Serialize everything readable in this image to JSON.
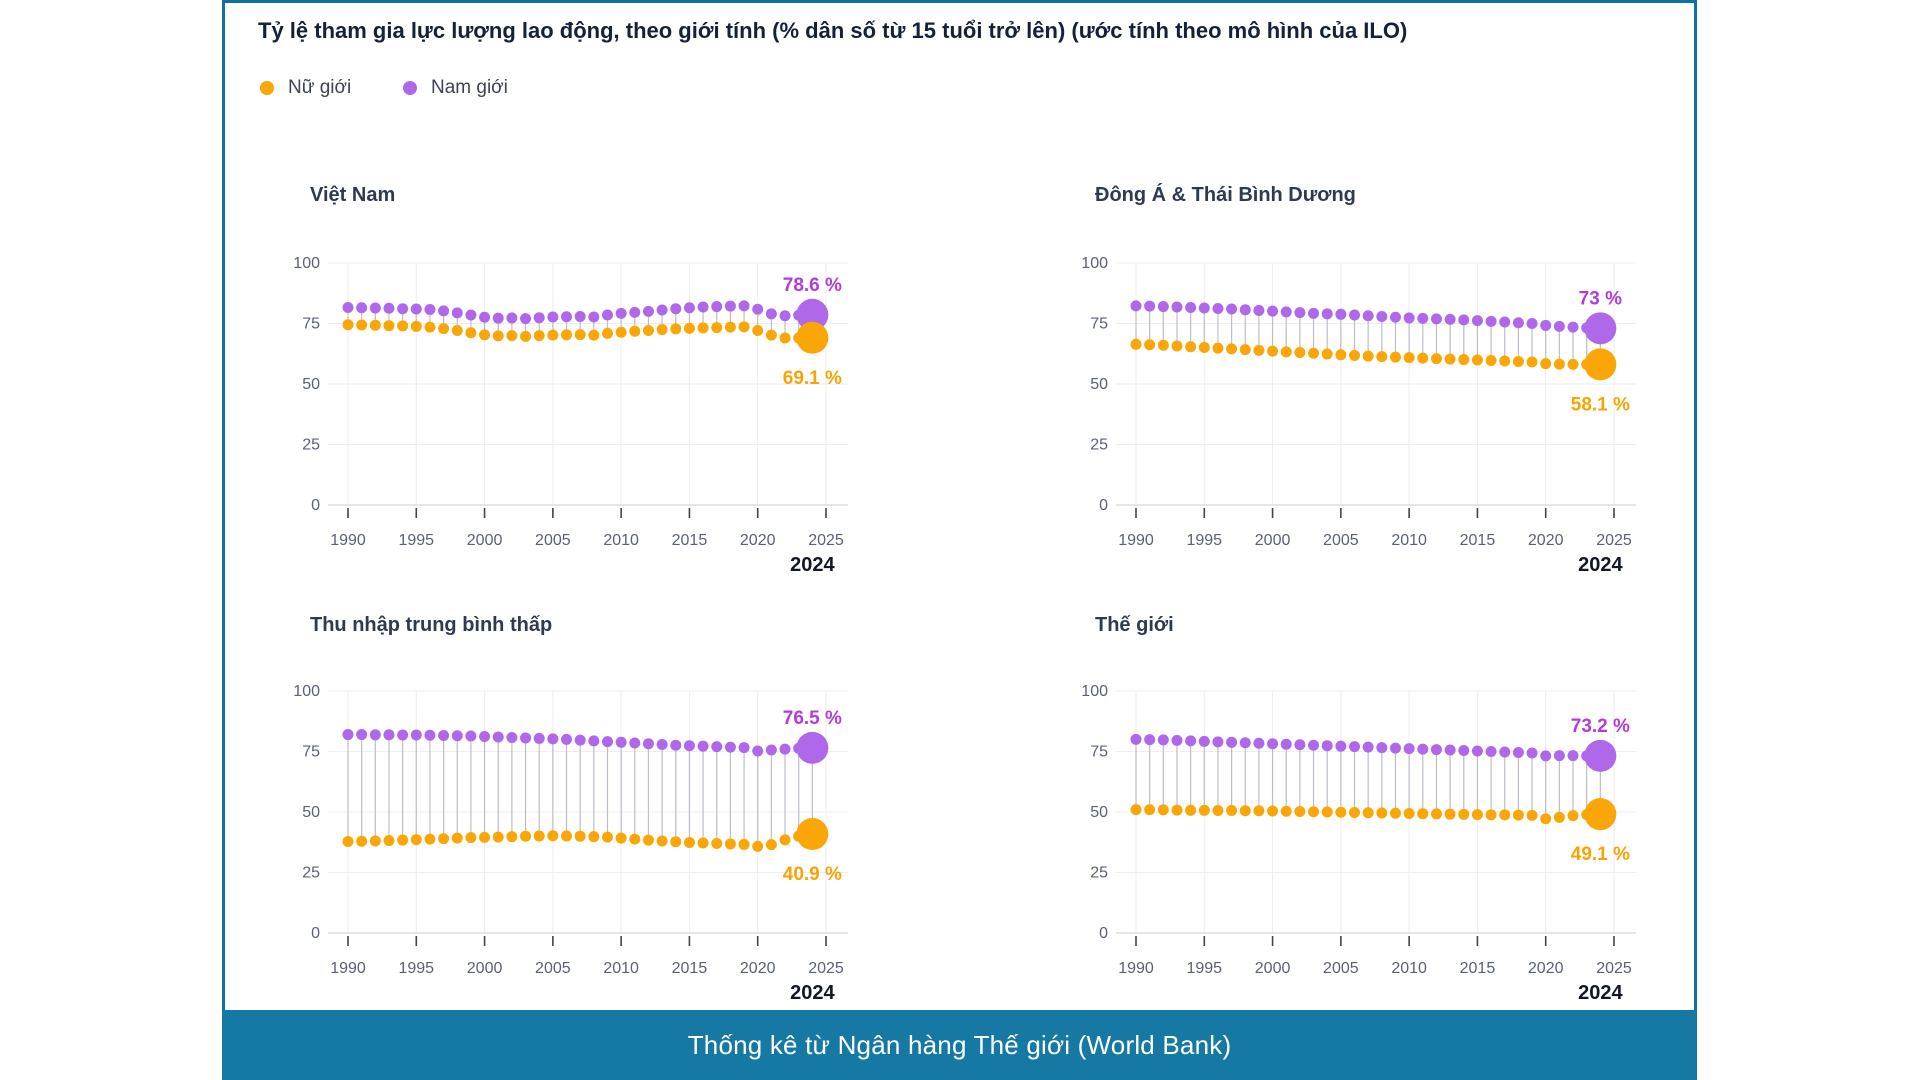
{
  "title": "Tỷ lệ tham gia lực lượng lao động, theo giới tính (% dân số từ 15 tuổi trở lên) (ước tính theo mô hình của ILO)",
  "legend": [
    {
      "label": "Nữ giới",
      "color": "#F9A606"
    },
    {
      "label": "Nam giới",
      "color": "#AE68E9"
    }
  ],
  "footer": {
    "text": "Thống kê từ Ngân hàng Thế giới (World Bank)",
    "bg_color": "#1579A4"
  },
  "card": {
    "border_color": "#0B72A3"
  },
  "chart_data": {
    "type": "scatter",
    "subtype": "dumbbell-timeseries",
    "years": [
      1990,
      1991,
      1992,
      1993,
      1994,
      1995,
      1996,
      1997,
      1998,
      1999,
      2000,
      2001,
      2002,
      2003,
      2004,
      2005,
      2006,
      2007,
      2008,
      2009,
      2010,
      2011,
      2012,
      2013,
      2014,
      2015,
      2016,
      2017,
      2018,
      2019,
      2020,
      2021,
      2022,
      2023,
      2024
    ],
    "x_ticks": [
      1990,
      1995,
      2000,
      2005,
      2010,
      2015,
      2020,
      2025
    ],
    "y_ticks": [
      0,
      25,
      50,
      75,
      100
    ],
    "ylim": [
      0,
      100
    ],
    "grid": true,
    "legend_position": "top-left",
    "highlight_year": 2024,
    "highlight_year_label": "2024",
    "colors": {
      "female": "#F9A606",
      "male": "#AE68E9",
      "female_label": "#F9A303",
      "male_label": "#B43BDB",
      "year_label": "#121826"
    },
    "series_names": {
      "female": "Nữ giới",
      "male": "Nam giới"
    },
    "panels": [
      {
        "title": "Việt Nam",
        "male_label": "78.6 %",
        "female_label": "69.1 %",
        "male": [
          81.6,
          81.5,
          81.4,
          81.3,
          81.1,
          81.0,
          80.8,
          80.2,
          79.4,
          78.5,
          77.6,
          77.2,
          77.3,
          77.0,
          77.4,
          77.7,
          77.8,
          77.9,
          77.7,
          78.5,
          79.2,
          79.6,
          80.0,
          80.6,
          81.1,
          81.5,
          81.8,
          82.0,
          82.2,
          82.3,
          80.9,
          79.0,
          78.2,
          78.4,
          78.6
        ],
        "female": [
          74.5,
          74.4,
          74.3,
          74.1,
          74.0,
          73.8,
          73.5,
          72.9,
          72.1,
          71.2,
          70.3,
          69.9,
          70.0,
          69.7,
          70.0,
          70.2,
          70.3,
          70.4,
          70.2,
          70.9,
          71.4,
          71.8,
          72.1,
          72.5,
          72.8,
          73.0,
          73.2,
          73.3,
          73.5,
          73.6,
          72.1,
          70.2,
          69.0,
          69.0,
          69.1
        ]
      },
      {
        "title": "Đông Á & Thái Bình Dương",
        "male_label": "73 %",
        "female_label": "58.1 %",
        "male": [
          82.3,
          82.2,
          82.0,
          81.8,
          81.6,
          81.4,
          81.2,
          81.0,
          80.7,
          80.4,
          80.1,
          79.8,
          79.5,
          79.2,
          79.0,
          78.8,
          78.5,
          78.2,
          77.9,
          77.6,
          77.3,
          77.1,
          76.9,
          76.7,
          76.5,
          76.2,
          75.9,
          75.6,
          75.3,
          75.0,
          74.2,
          73.8,
          73.5,
          73.2,
          73.0
        ],
        "female": [
          66.4,
          66.2,
          66.0,
          65.7,
          65.4,
          65.1,
          64.8,
          64.5,
          64.2,
          63.9,
          63.6,
          63.3,
          63.0,
          62.7,
          62.4,
          62.1,
          61.8,
          61.5,
          61.3,
          61.1,
          60.9,
          60.7,
          60.5,
          60.3,
          60.1,
          59.9,
          59.7,
          59.5,
          59.3,
          59.1,
          58.4,
          58.2,
          58.1,
          58.1,
          58.1
        ]
      },
      {
        "title": "Thu nhập trung bình thấp",
        "male_label": "76.5 %",
        "female_label": "40.9 %",
        "male": [
          82.0,
          82.0,
          81.9,
          81.9,
          81.8,
          81.8,
          81.7,
          81.6,
          81.5,
          81.4,
          81.2,
          81.0,
          80.8,
          80.6,
          80.4,
          80.2,
          80.0,
          79.7,
          79.4,
          79.1,
          78.8,
          78.5,
          78.2,
          77.9,
          77.6,
          77.4,
          77.2,
          77.0,
          76.8,
          76.6,
          75.2,
          75.6,
          76.0,
          76.3,
          76.5
        ],
        "female": [
          37.8,
          37.9,
          38.0,
          38.2,
          38.4,
          38.6,
          38.8,
          39.0,
          39.2,
          39.4,
          39.5,
          39.6,
          39.8,
          40.0,
          40.1,
          40.2,
          40.1,
          40.0,
          39.8,
          39.6,
          39.2,
          38.8,
          38.4,
          38.0,
          37.7,
          37.4,
          37.2,
          37.0,
          36.8,
          36.6,
          35.8,
          36.5,
          38.5,
          40.0,
          40.9
        ]
      },
      {
        "title": "Thế giới",
        "male_label": "73.2 %",
        "female_label": "49.1 %",
        "male": [
          80.0,
          79.9,
          79.8,
          79.6,
          79.4,
          79.2,
          79.0,
          78.8,
          78.6,
          78.4,
          78.2,
          78.0,
          77.8,
          77.6,
          77.4,
          77.2,
          77.0,
          76.8,
          76.6,
          76.4,
          76.2,
          76.0,
          75.8,
          75.6,
          75.4,
          75.2,
          75.0,
          74.8,
          74.6,
          74.4,
          73.2,
          73.3,
          73.3,
          73.2,
          73.2
        ],
        "female": [
          51.0,
          51.0,
          50.9,
          50.8,
          50.7,
          50.7,
          50.6,
          50.6,
          50.5,
          50.5,
          50.4,
          50.3,
          50.2,
          50.1,
          50.0,
          49.9,
          49.8,
          49.7,
          49.6,
          49.5,
          49.4,
          49.3,
          49.2,
          49.1,
          49.0,
          48.9,
          48.8,
          48.8,
          48.7,
          48.6,
          47.2,
          47.8,
          48.5,
          48.9,
          49.1
        ]
      }
    ]
  }
}
